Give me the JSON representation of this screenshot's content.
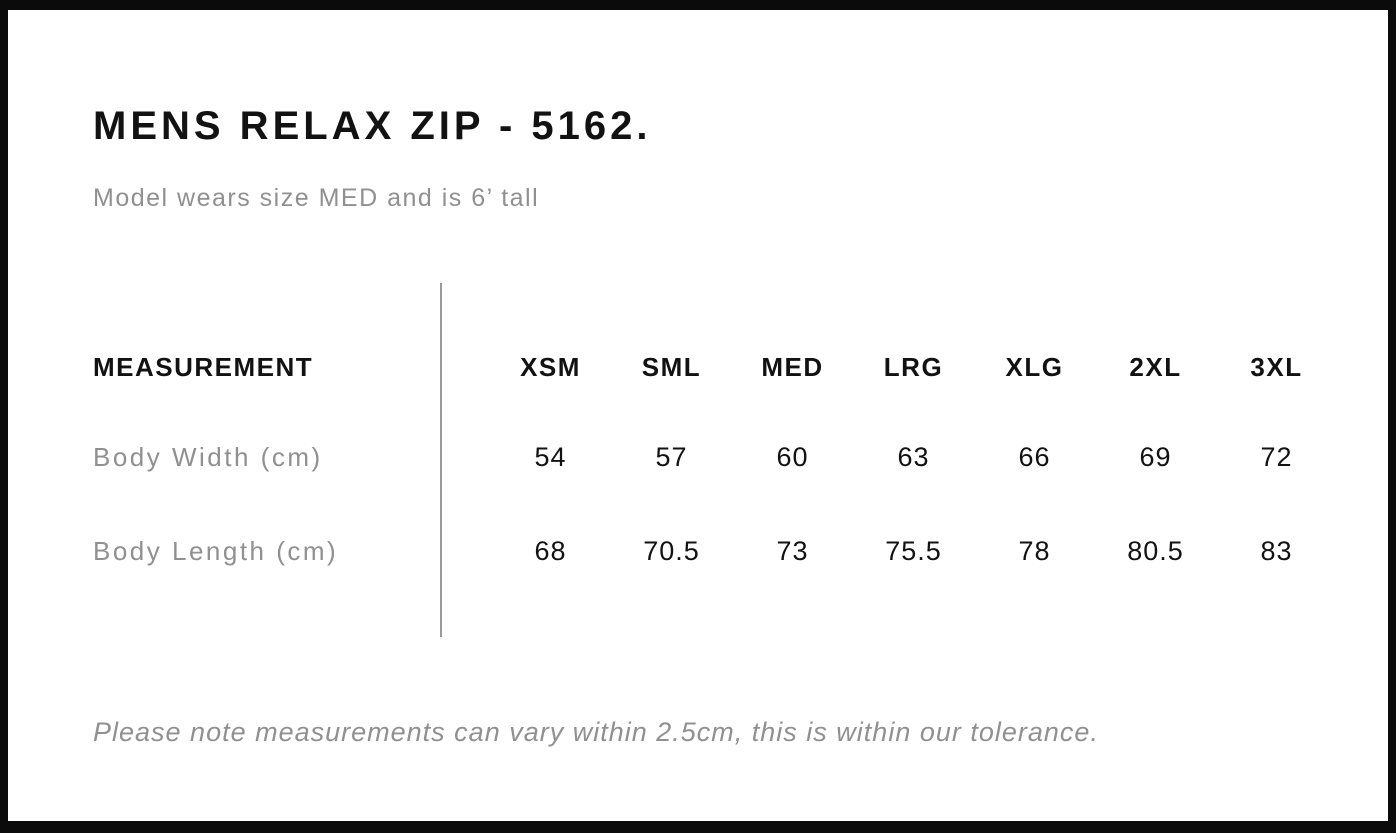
{
  "page": {
    "title": "MENS RELAX ZIP - 5162.",
    "subtitle": "Model wears size MED and is 6’ tall",
    "note": "Please note measurements can vary within 2.5cm, this is within our tolerance."
  },
  "size_table": {
    "measurement_header": "MEASUREMENT",
    "size_headers": [
      "XSM",
      "SML",
      "MED",
      "LRG",
      "XLG",
      "2XL",
      "3XL"
    ],
    "rows": [
      {
        "label": "Body Width (cm)",
        "values": [
          "54",
          "57",
          "60",
          "63",
          "66",
          "69",
          "72"
        ]
      },
      {
        "label": "Body Length (cm)",
        "values": [
          "68",
          "70.5",
          "73",
          "75.5",
          "78",
          "80.5",
          "83"
        ]
      }
    ]
  },
  "chart_data": {
    "type": "table",
    "title": "MENS RELAX ZIP - 5162.",
    "columns": [
      "MEASUREMENT",
      "XSM",
      "SML",
      "MED",
      "LRG",
      "XLG",
      "2XL",
      "3XL"
    ],
    "rows": [
      [
        "Body Width (cm)",
        54,
        57,
        60,
        63,
        66,
        69,
        72
      ],
      [
        "Body Length (cm)",
        68,
        70.5,
        73,
        75.5,
        78,
        80.5,
        83
      ]
    ]
  },
  "colors": {
    "frame": "#0b0b0b",
    "ink": "#121212",
    "muted": "#909090",
    "divider": "#9b9b9b"
  }
}
